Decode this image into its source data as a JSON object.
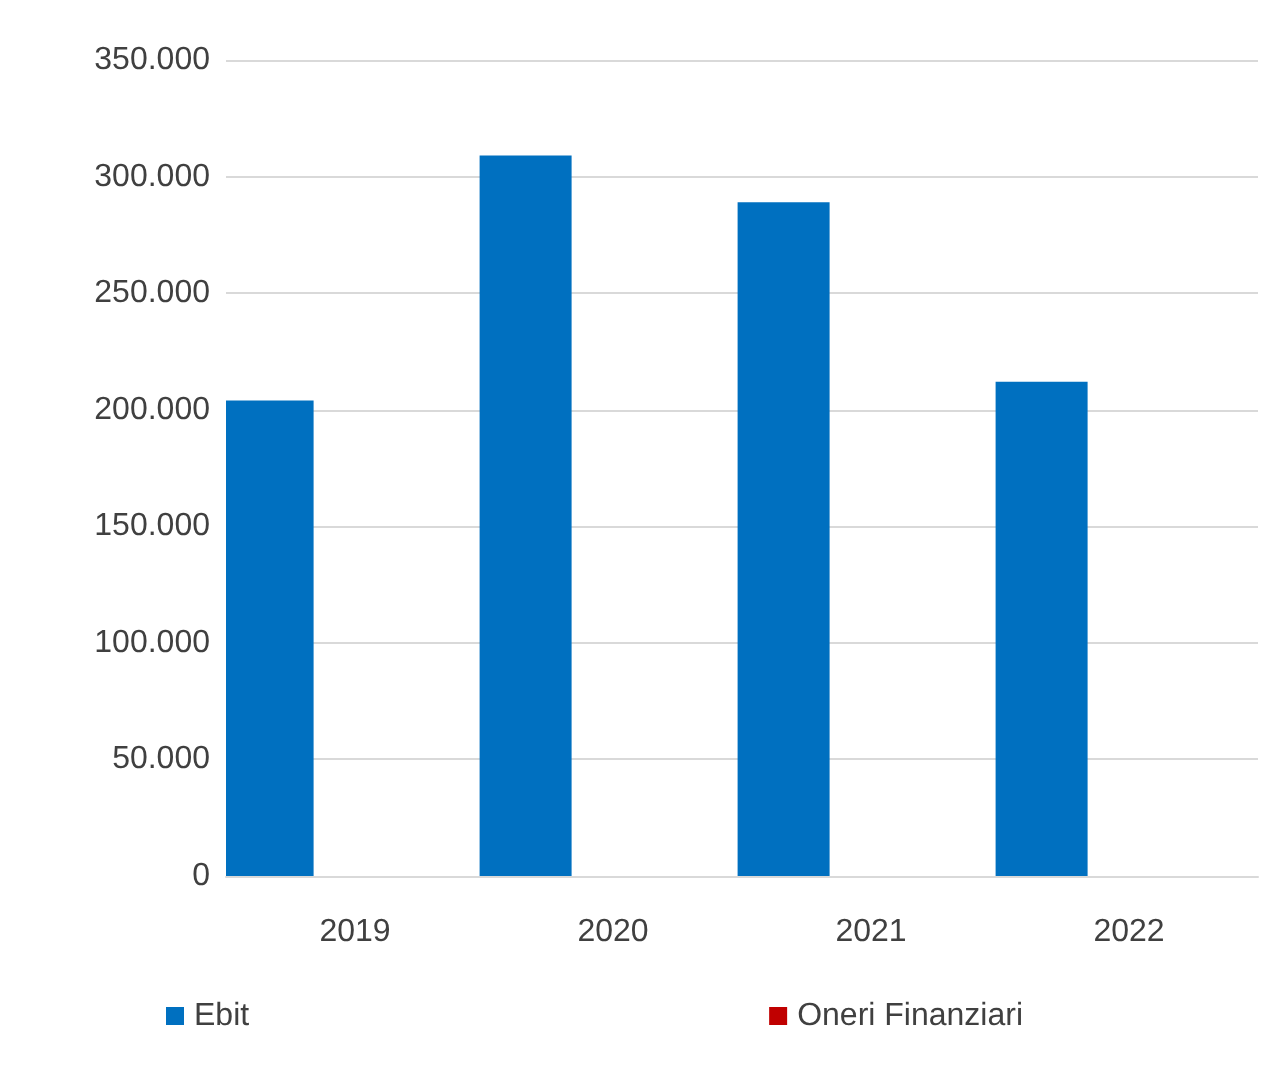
{
  "chart_data": {
    "type": "bar",
    "categories": [
      "2019",
      "2020",
      "2021",
      "2022"
    ],
    "series": [
      {
        "name": "Ebit",
        "color": "#0070c0",
        "values": [
          204000,
          309000,
          289000,
          212000
        ]
      },
      {
        "name": "Oneri Finanziari",
        "color": "#c00000",
        "values": [
          0,
          0,
          0,
          0
        ]
      }
    ],
    "ylim": [
      0,
      350000
    ],
    "yticks": [
      {
        "value": 0,
        "label": "0"
      },
      {
        "value": 50000,
        "label": "50.000"
      },
      {
        "value": 100000,
        "label": "100.000"
      },
      {
        "value": 150000,
        "label": "150.000"
      },
      {
        "value": 200000,
        "label": "200.000"
      },
      {
        "value": 250000,
        "label": "250.000"
      },
      {
        "value": 300000,
        "label": "300.000"
      },
      {
        "value": 350000,
        "label": "350.000"
      }
    ],
    "grid": "y",
    "legend": "bottom"
  }
}
